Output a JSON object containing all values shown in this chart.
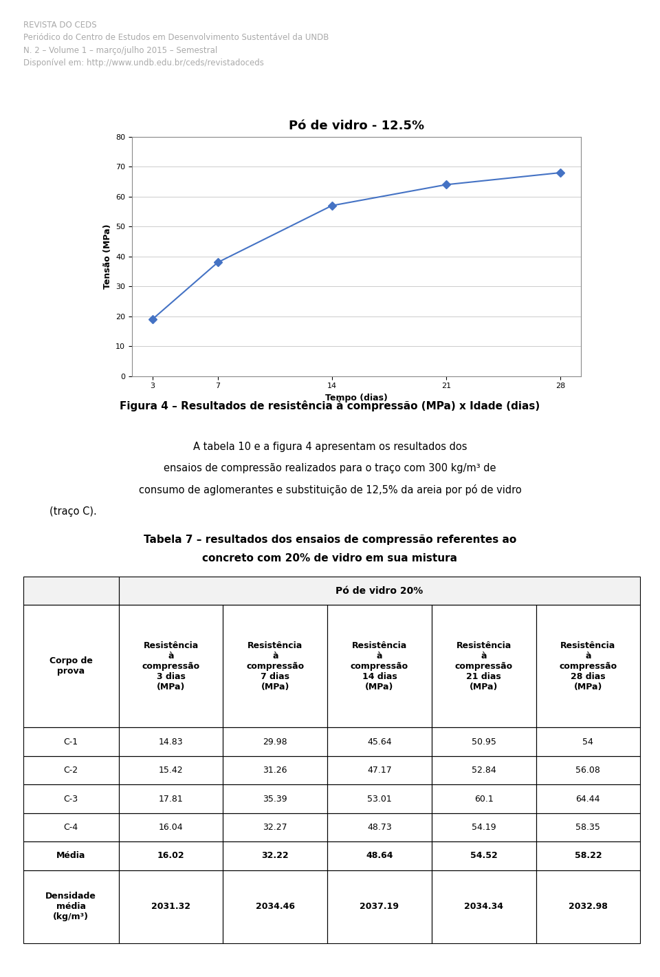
{
  "header_lines": [
    "REVISTA DO CEDS",
    "Periódico do Centro de Estudos em Desenvolvimento Sustentável da UNDB",
    "N. 2 – Volume 1 – março/julho 2015 – Semestral",
    "Disponível em: http://www.undb.edu.br/ceds/revistadoceds"
  ],
  "chart_title": "Pó de vidro - 12.5%",
  "x_data": [
    3,
    7,
    14,
    21,
    28
  ],
  "y_data": [
    19,
    38,
    57,
    64,
    68
  ],
  "xlabel": "Tempo (dias)",
  "ylabel": "Tensão (MPa)",
  "ylim": [
    0,
    80
  ],
  "yticks": [
    0,
    10,
    20,
    30,
    40,
    50,
    60,
    70,
    80
  ],
  "xticks": [
    3,
    7,
    14,
    21,
    28
  ],
  "line_color": "#4472C4",
  "marker": "D",
  "figura_caption": "Figura 4 – Resultados de resistência à compressão (MPa) x Idade (dias)",
  "para_lines": [
    "A tabela 10 e a figura 4 apresentam os resultados dos",
    "ensaios de compressão realizados para o traço com 300 kg/m³ de",
    "consumo de aglomerantes e substituição de 12,5% da areia por pó de vidro",
    "(traço C)."
  ],
  "table_title_line1": "Tabela 7 – resultados dos ensaios de compressão referentes ao",
  "table_title_line2": "concreto com 20% de vidro em sua mistura",
  "table_header_merged": "Pó de vidro 20%",
  "col_header_texts": [
    "Corpo de\nprova",
    "Resistência\nà\ncompressão\n3 dias\n(MPa)",
    "Resistência\nà\ncompressão\n7 dias\n(MPa)",
    "Resistência\nà\ncompressão\n14 dias\n(MPa)",
    "Resistência\nà\ncompressão\n21 dias\n(MPa)",
    "Resistência\nà\ncompressão\n28 dias\n(MPa)"
  ],
  "table_rows": [
    [
      "C-1",
      "14.83",
      "29.98",
      "45.64",
      "50.95",
      "54"
    ],
    [
      "C-2",
      "15.42",
      "31.26",
      "47.17",
      "52.84",
      "56.08"
    ],
    [
      "C-3",
      "17.81",
      "35.39",
      "53.01",
      "60.1",
      "64.44"
    ],
    [
      "C-4",
      "16.04",
      "32.27",
      "48.73",
      "54.19",
      "58.35"
    ],
    [
      "Média",
      "16.02",
      "32.22",
      "48.64",
      "54.52",
      "58.22"
    ],
    [
      "Densidade\nmédia\n(kg/m³)",
      "2031.32",
      "2034.46",
      "2037.19",
      "2034.34",
      "2032.98"
    ]
  ],
  "bold_rows": [
    4,
    5
  ],
  "background_color": "#ffffff",
  "header_text_color": "#aaaaaa",
  "table_border_color": "#000000"
}
